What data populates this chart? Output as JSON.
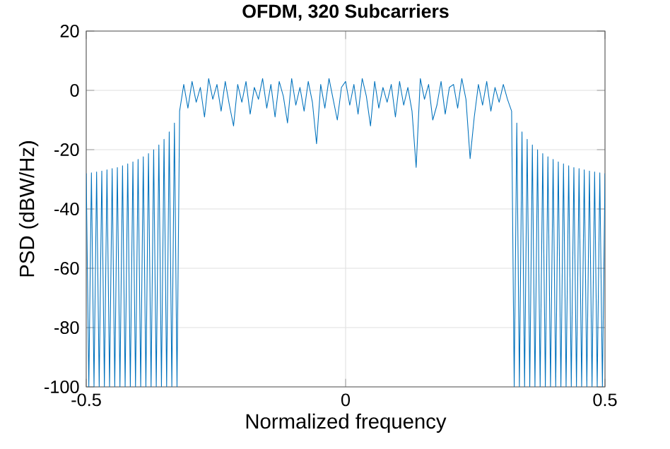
{
  "chart_data": {
    "type": "line",
    "title": "OFDM, 320 Subcarriers",
    "xlabel": "Normalized frequency",
    "ylabel": "PSD (dBW/Hz)",
    "xlim": [
      -0.5,
      0.5
    ],
    "ylim": [
      -100,
      20
    ],
    "xticks": [
      -0.5,
      0,
      0.5
    ],
    "yticks": [
      -100,
      -80,
      -60,
      -40,
      -20,
      0,
      20
    ],
    "grid": true,
    "marker": "none",
    "line_style": "solid",
    "series": [
      {
        "color": "#0072bd",
        "x": [
          -0.5,
          -0.495,
          -0.49,
          -0.485,
          -0.48,
          -0.475,
          -0.47,
          -0.465,
          -0.46,
          -0.455,
          -0.45,
          -0.445,
          -0.44,
          -0.435,
          -0.43,
          -0.425,
          -0.42,
          -0.415,
          -0.41,
          -0.405,
          -0.4,
          -0.395,
          -0.39,
          -0.385,
          -0.38,
          -0.375,
          -0.37,
          -0.365,
          -0.36,
          -0.355,
          -0.35,
          -0.345,
          -0.34,
          -0.335,
          -0.33,
          -0.325,
          -0.32,
          -0.312,
          -0.304,
          -0.296,
          -0.288,
          -0.28,
          -0.272,
          -0.264,
          -0.256,
          -0.248,
          -0.24,
          -0.232,
          -0.224,
          -0.216,
          -0.208,
          -0.2,
          -0.192,
          -0.184,
          -0.176,
          -0.168,
          -0.16,
          -0.152,
          -0.144,
          -0.136,
          -0.128,
          -0.12,
          -0.112,
          -0.104,
          -0.096,
          -0.088,
          -0.08,
          -0.072,
          -0.064,
          -0.056,
          -0.048,
          -0.04,
          -0.032,
          -0.024,
          -0.016,
          -0.008,
          0,
          0.008,
          0.016,
          0.024,
          0.032,
          0.04,
          0.048,
          0.056,
          0.064,
          0.072,
          0.08,
          0.088,
          0.096,
          0.104,
          0.112,
          0.12,
          0.128,
          0.136,
          0.144,
          0.152,
          0.16,
          0.168,
          0.176,
          0.184,
          0.192,
          0.2,
          0.208,
          0.216,
          0.224,
          0.232,
          0.24,
          0.248,
          0.256,
          0.264,
          0.272,
          0.28,
          0.288,
          0.296,
          0.304,
          0.312,
          0.32,
          0.325,
          0.33,
          0.335,
          0.34,
          0.345,
          0.35,
          0.355,
          0.36,
          0.365,
          0.37,
          0.375,
          0.38,
          0.385,
          0.39,
          0.395,
          0.4,
          0.405,
          0.41,
          0.415,
          0.42,
          0.425,
          0.43,
          0.435,
          0.44,
          0.445,
          0.45,
          0.455,
          0.46,
          0.465,
          0.47,
          0.475,
          0.48,
          0.485,
          0.49,
          0.495,
          0.5
        ],
        "values": [
          -28,
          -100,
          -27.8,
          -100,
          -27.5,
          -100,
          -27.2,
          -100,
          -26.8,
          -100,
          -26.4,
          -100,
          -26,
          -100,
          -25.4,
          -100,
          -24.8,
          -100,
          -24.1,
          -100,
          -23.3,
          -100,
          -22.4,
          -100,
          -21.3,
          -100,
          -20,
          -100,
          -18.4,
          -100,
          -16.5,
          -100,
          -14,
          -100,
          -11,
          -100,
          -7,
          2,
          -6,
          3,
          -4,
          1,
          -9,
          4,
          -3,
          2,
          -7,
          3,
          -5,
          -12,
          2,
          -4,
          3,
          -8,
          1,
          -3,
          4,
          -6,
          2,
          -9,
          3,
          -2,
          -11,
          4,
          -5,
          1,
          -7,
          3,
          -4,
          -18,
          2,
          -6,
          4,
          -3,
          -10,
          1,
          3,
          -5,
          2,
          -8,
          4,
          -2,
          -12,
          3,
          -6,
          1,
          -4,
          2,
          -9,
          3,
          -5,
          1,
          -7,
          -26,
          4,
          -3,
          2,
          -10,
          -5,
          3,
          -8,
          1,
          2,
          -6,
          4,
          -3,
          -23,
          -9,
          2,
          -5,
          3,
          -7,
          1,
          -4,
          2,
          -3,
          -7,
          -100,
          -11,
          -100,
          -14,
          -100,
          -16.5,
          -100,
          -18.4,
          -100,
          -20,
          -100,
          -21.3,
          -100,
          -22.4,
          -100,
          -23.3,
          -100,
          -24.1,
          -100,
          -24.8,
          -100,
          -25.4,
          -100,
          -26,
          -100,
          -26.4,
          -100,
          -26.8,
          -100,
          -27.2,
          -100,
          -27.5,
          -100,
          -27.8,
          -100,
          -28
        ]
      }
    ]
  }
}
